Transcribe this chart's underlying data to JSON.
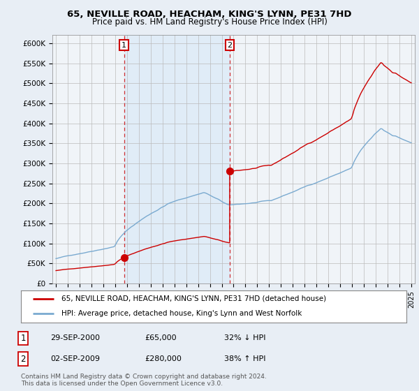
{
  "title1": "65, NEVILLE ROAD, HEACHAM, KING'S LYNN, PE31 7HD",
  "title2": "Price paid vs. HM Land Registry's House Price Index (HPI)",
  "legend_line1": "65, NEVILLE ROAD, HEACHAM, KING'S LYNN, PE31 7HD (detached house)",
  "legend_line2": "HPI: Average price, detached house, King's Lynn and West Norfolk",
  "annotation1_date": "29-SEP-2000",
  "annotation1_price": "£65,000",
  "annotation1_hpi": "32% ↓ HPI",
  "annotation2_date": "02-SEP-2009",
  "annotation2_price": "£280,000",
  "annotation2_hpi": "38% ↑ HPI",
  "footer": "Contains HM Land Registry data © Crown copyright and database right 2024.\nThis data is licensed under the Open Government Licence v3.0.",
  "sale1_x": 2000.75,
  "sale1_y": 65000,
  "sale2_x": 2009.67,
  "sale2_y": 280000,
  "red_color": "#cc0000",
  "blue_color": "#7aaad0",
  "shade_color": "#ddeaf7",
  "ylim": [
    0,
    620000
  ],
  "xlim": [
    1994.7,
    2025.3
  ],
  "yticks": [
    0,
    50000,
    100000,
    150000,
    200000,
    250000,
    300000,
    350000,
    400000,
    450000,
    500000,
    550000,
    600000
  ],
  "ytick_labels": [
    "£0",
    "£50K",
    "£100K",
    "£150K",
    "£200K",
    "£250K",
    "£300K",
    "£350K",
    "£400K",
    "£450K",
    "£500K",
    "£550K",
    "£600K"
  ],
  "bg_color": "#e8eef5",
  "plot_bg": "#f0f4f8"
}
